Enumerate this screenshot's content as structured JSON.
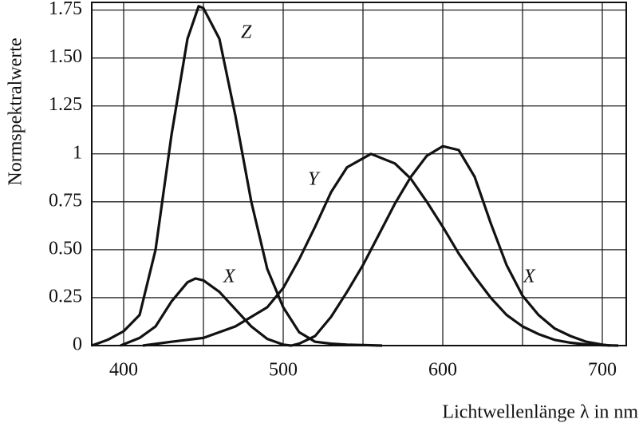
{
  "chart_data": {
    "type": "line",
    "ylabel": "Normspektralwerte",
    "xlabel": "Lichtwellenlänge λ in nm",
    "xlim": [
      380,
      715
    ],
    "ylim": [
      0,
      1.79
    ],
    "xticks": [
      400,
      500,
      600,
      700
    ],
    "xminor_ticks": [
      450,
      550,
      650
    ],
    "yticks": [
      0,
      0.25,
      {
        "value": 0.5,
        "label": "0.50"
      },
      0.75,
      1,
      1.25,
      {
        "value": 1.5,
        "label": "1.50"
      },
      1.75
    ],
    "grid": true,
    "series": [
      {
        "name": "Z",
        "color": "#111111",
        "x": [
          380,
          390,
          400,
          410,
          420,
          430,
          440,
          447,
          450,
          460,
          470,
          480,
          490,
          500,
          510,
          520,
          530,
          540,
          550,
          562
        ],
        "values": [
          0,
          0.03,
          0.075,
          0.16,
          0.5,
          1.1,
          1.6,
          1.77,
          1.76,
          1.6,
          1.2,
          0.75,
          0.4,
          0.2,
          0.07,
          0.02,
          0.01,
          0.005,
          0.003,
          0
        ]
      },
      {
        "name": "Y",
        "color": "#111111",
        "x": [
          412,
          430,
          450,
          470,
          490,
          500,
          510,
          520,
          530,
          540,
          555,
          570,
          580,
          590,
          600,
          610,
          620,
          630,
          640,
          650,
          660,
          670,
          680,
          690,
          700,
          710
        ],
        "values": [
          0,
          0.02,
          0.04,
          0.1,
          0.2,
          0.3,
          0.45,
          0.62,
          0.8,
          0.93,
          1.0,
          0.95,
          0.87,
          0.75,
          0.62,
          0.48,
          0.36,
          0.25,
          0.16,
          0.1,
          0.06,
          0.03,
          0.015,
          0.006,
          0.002,
          0
        ]
      },
      {
        "name": "X",
        "color": "#111111",
        "x": [
          398,
          410,
          420,
          430,
          440,
          445,
          450,
          460,
          470,
          480,
          490,
          500,
          505,
          510,
          520,
          530,
          540,
          550,
          560,
          570,
          580,
          590,
          600,
          610,
          620,
          630,
          640,
          650,
          660,
          670,
          680,
          690,
          700,
          705
        ],
        "values": [
          0,
          0.04,
          0.1,
          0.23,
          0.33,
          0.35,
          0.34,
          0.28,
          0.19,
          0.1,
          0.035,
          0.005,
          0,
          0.01,
          0.05,
          0.15,
          0.28,
          0.42,
          0.58,
          0.74,
          0.88,
          0.99,
          1.04,
          1.02,
          0.88,
          0.64,
          0.42,
          0.26,
          0.16,
          0.09,
          0.05,
          0.02,
          0.005,
          0
        ]
      }
    ]
  }
}
